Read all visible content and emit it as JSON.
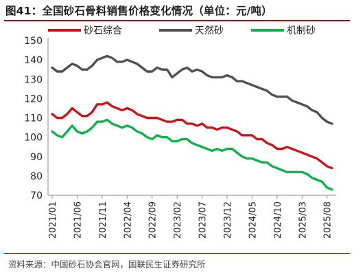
{
  "header": {
    "title": "图41：全国砂石骨料销售价格变化情况（单位：元/吨）"
  },
  "footer": {
    "source": "资料来源：中国砂石协会官网，国联民生证券研究所"
  },
  "colors": {
    "accent_rule": "#b40c12",
    "series": [
      "#c8161d",
      "#505050",
      "#12b04c"
    ]
  },
  "chart_data": {
    "type": "line",
    "title": "图41：全国砂石骨料销售价格变化情况（单位：元/吨）",
    "xlabel": "",
    "ylabel": "",
    "ylim": [
      70,
      150
    ],
    "yticks": [
      70,
      80,
      90,
      100,
      110,
      120,
      130,
      140,
      150
    ],
    "xtick_labels": [
      "2021/01",
      "2021/06",
      "2021/11",
      "2022/04",
      "2022/09",
      "2023/02",
      "2023/07",
      "2023/12",
      "2024/05",
      "2024/10",
      "2025/03",
      "2025/08"
    ],
    "x": [
      "2021/01",
      "2021/02",
      "2021/03",
      "2021/04",
      "2021/05",
      "2021/06",
      "2021/07",
      "2021/08",
      "2021/09",
      "2021/10",
      "2021/11",
      "2021/12",
      "2022/01",
      "2022/02",
      "2022/03",
      "2022/04",
      "2022/05",
      "2022/06",
      "2022/07",
      "2022/08",
      "2022/09",
      "2022/10",
      "2022/11",
      "2022/12",
      "2023/01",
      "2023/02",
      "2023/03",
      "2023/04",
      "2023/05",
      "2023/06",
      "2023/07",
      "2023/08",
      "2023/09",
      "2023/10",
      "2023/11",
      "2023/12",
      "2024/01",
      "2024/02",
      "2024/03",
      "2024/04",
      "2024/05",
      "2024/06",
      "2024/07",
      "2024/08",
      "2024/09",
      "2024/10",
      "2024/11",
      "2024/12",
      "2025/01",
      "2025/02",
      "2025/03",
      "2025/04",
      "2025/05",
      "2025/06",
      "2025/07",
      "2025/08",
      "2025/09"
    ],
    "grid": false,
    "legend_position": "top",
    "series": [
      {
        "name": "砂石综合",
        "color": "#c8161d",
        "values": [
          112,
          110,
          110,
          112,
          115,
          113,
          111,
          111,
          113,
          117,
          117,
          118,
          116,
          115,
          114,
          115,
          114,
          112,
          111,
          110,
          110,
          110,
          109,
          108,
          108,
          109,
          109,
          107,
          107,
          106,
          107,
          105,
          105,
          104,
          105,
          105,
          104,
          103,
          101,
          101,
          101,
          99,
          99,
          97,
          96,
          94,
          94,
          95,
          94,
          93,
          92,
          91,
          90,
          89,
          87,
          85,
          84
        ]
      },
      {
        "name": "天然砂",
        "color": "#505050",
        "values": [
          136,
          134,
          134,
          136,
          138,
          137,
          135,
          135,
          137,
          140,
          141,
          142,
          141,
          139,
          139,
          140,
          139,
          138,
          136,
          134,
          134,
          136,
          135,
          135,
          131,
          133,
          135,
          136,
          134,
          135,
          134,
          132,
          131,
          131,
          131,
          132,
          131,
          129,
          129,
          128,
          127,
          126,
          125,
          124,
          122,
          121,
          121,
          121,
          119,
          118,
          117,
          116,
          114,
          113,
          110,
          108,
          107
        ]
      },
      {
        "name": "机制砂",
        "color": "#12b04c",
        "values": [
          103,
          101,
          100,
          103,
          106,
          103,
          102,
          103,
          105,
          108,
          108,
          109,
          107,
          106,
          105,
          106,
          105,
          103,
          102,
          100,
          99,
          101,
          100,
          100,
          98,
          98,
          99,
          99,
          97,
          96,
          95,
          94,
          93,
          94,
          93,
          94,
          94,
          92,
          90,
          89,
          89,
          88,
          87,
          87,
          85,
          84,
          83,
          82,
          82,
          82,
          82,
          81,
          79,
          78,
          77,
          74,
          73
        ]
      }
    ]
  }
}
